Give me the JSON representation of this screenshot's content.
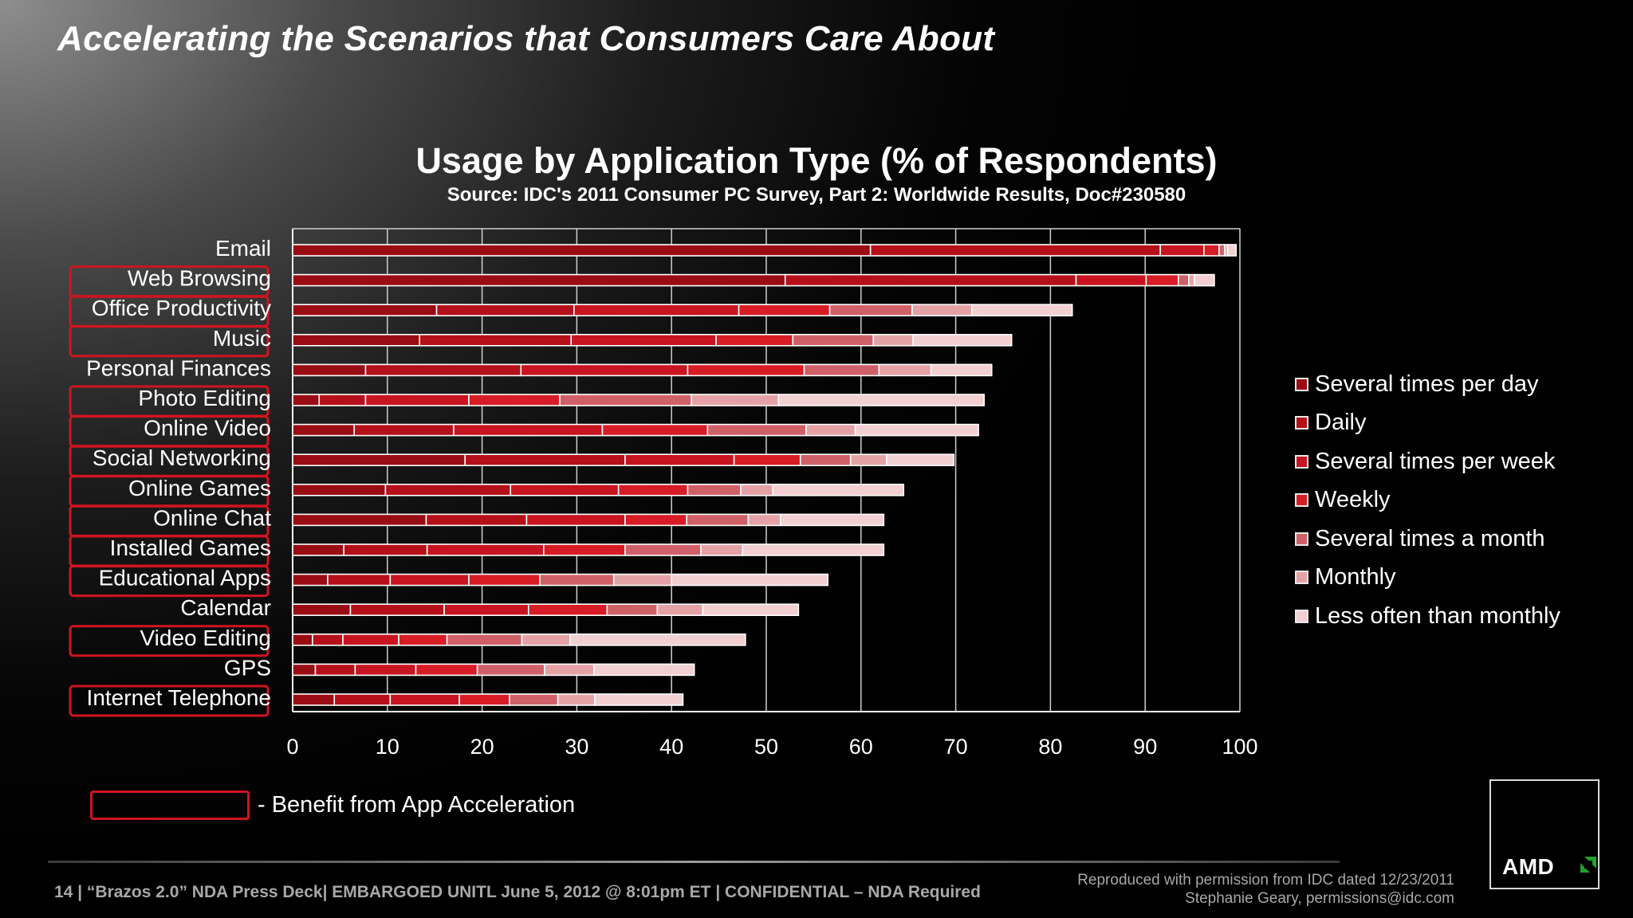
{
  "slide": {
    "title": "Accelerating the Scenarios that Consumers Care About",
    "footer": "14 | “Brazos 2.0” NDA Press Deck| EMBARGOED UNITL June 5, 2012 @ 8:01pm ET | CONFIDENTIAL – NDA Required",
    "credit_line1": "Reproduced with permission from IDC dated 12/23/2011",
    "credit_line2": "Stephanie Geary, permissions@idc.com",
    "logo_text": "AMD",
    "logo_icon": "amd-arrow-icon",
    "note_text": "- Benefit from App Acceleration",
    "highlight_color": "#d01420"
  },
  "chart_data": {
    "type": "bar",
    "orientation": "horizontal",
    "stacked": true,
    "title": "Usage by Application Type (% of Respondents)",
    "subtitle": "Source: IDC's 2011 Consumer PC Survey, Part 2: Worldwide Results, Doc#230580",
    "xlim": [
      0,
      100
    ],
    "xticks": [
      0,
      10,
      20,
      30,
      40,
      50,
      60,
      70,
      80,
      90,
      100
    ],
    "grid": true,
    "legend_position": "right",
    "categories": [
      "Email",
      "Web Browsing",
      "Office Productivity",
      "Music",
      "Personal Finances",
      "Photo Editing",
      "Online Video",
      "Social Networking",
      "Online Games",
      "Online Chat",
      "Installed Games",
      "Educational Apps",
      "Calendar",
      "Video Editing",
      "GPS",
      "Internet Telephone"
    ],
    "highlighted": [
      false,
      true,
      true,
      true,
      false,
      true,
      true,
      true,
      true,
      true,
      true,
      true,
      false,
      true,
      false,
      true
    ],
    "series": [
      {
        "name": "Several times per day",
        "color": "#9a0c14",
        "values": [
          61,
          52,
          15.2,
          13.4,
          7.7,
          2.8,
          6.5,
          18.2,
          9.8,
          14.1,
          5.4,
          3.7,
          6.1,
          2.1,
          2.4,
          4.4
        ]
      },
      {
        "name": "Daily",
        "color": "#b5101a",
        "values": [
          30.6,
          30.7,
          14.5,
          16,
          16.4,
          4.9,
          10.5,
          16.9,
          13.2,
          10.6,
          8.8,
          6.6,
          9.9,
          3.2,
          4.2,
          5.9
        ]
      },
      {
        "name": "Several times per week",
        "color": "#c81420",
        "values": [
          4.6,
          7.4,
          17.4,
          15.3,
          17.6,
          10.9,
          15.7,
          11.5,
          11.4,
          10.4,
          12.3,
          8.3,
          8.9,
          5.9,
          6.4,
          7.3
        ]
      },
      {
        "name": "Weekly",
        "color": "#d81c26",
        "values": [
          1.6,
          3.4,
          9.6,
          8.1,
          12.3,
          9.6,
          11.1,
          7,
          7.3,
          6.5,
          8.6,
          7.5,
          8.3,
          5.1,
          6.5,
          5.3
        ]
      },
      {
        "name": "Several times a month",
        "color": "#d06068",
        "values": [
          0.6,
          1.1,
          8.7,
          8.5,
          7.9,
          13.9,
          10.4,
          5.3,
          5.6,
          6.5,
          8,
          7.8,
          5.3,
          7.9,
          7.1,
          5.1
        ]
      },
      {
        "name": "Monthly",
        "color": "#e5a2a6",
        "values": [
          0.3,
          0.6,
          6.3,
          4.2,
          5.5,
          9.2,
          5.2,
          3.8,
          3.4,
          3.4,
          4.4,
          6.1,
          4.8,
          5.1,
          5.2,
          3.9
        ]
      },
      {
        "name": "Less often than monthly",
        "color": "#f2cfd1",
        "values": [
          0.9,
          2.1,
          10.6,
          10.4,
          6.4,
          21.7,
          13,
          7.1,
          13.8,
          10.9,
          14.9,
          16.5,
          10.1,
          18.5,
          10.6,
          9.3
        ]
      }
    ]
  }
}
